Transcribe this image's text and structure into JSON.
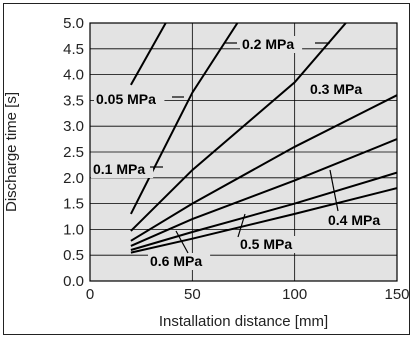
{
  "chart_data": {
    "type": "line",
    "xlabel": "Installation distance [mm]",
    "ylabel": "Discharge time [s]",
    "xlim": [
      0,
      150
    ],
    "ylim": [
      0,
      5
    ],
    "x_ticks": [
      "0",
      "50",
      "100",
      "150"
    ],
    "y_ticks": [
      "0.0",
      "0.5",
      "1.0",
      "1.5",
      "2.0",
      "2.5",
      "3.0",
      "3.5",
      "4.0",
      "4.5",
      "5.0"
    ],
    "grid": true,
    "series": [
      {
        "name": "0.05 MPa",
        "points": [
          [
            20,
            3.8
          ],
          [
            37,
            5.0
          ]
        ]
      },
      {
        "name": "0.1 MPa",
        "points": [
          [
            20,
            1.3
          ],
          [
            50,
            3.65
          ],
          [
            72,
            5.0
          ]
        ]
      },
      {
        "name": "0.2 MPa",
        "points": [
          [
            20,
            0.97
          ],
          [
            50,
            2.15
          ],
          [
            100,
            3.85
          ],
          [
            125,
            5.0
          ]
        ]
      },
      {
        "name": "0.3 MPa",
        "points": [
          [
            20,
            0.78
          ],
          [
            50,
            1.5
          ],
          [
            100,
            2.6
          ],
          [
            150,
            3.6
          ]
        ]
      },
      {
        "name": "0.4 MPa",
        "points": [
          [
            20,
            0.68
          ],
          [
            50,
            1.2
          ],
          [
            100,
            1.95
          ],
          [
            150,
            2.75
          ]
        ]
      },
      {
        "name": "0.5 MPa",
        "points": [
          [
            20,
            0.6
          ],
          [
            50,
            0.95
          ],
          [
            100,
            1.5
          ],
          [
            150,
            2.1
          ]
        ]
      },
      {
        "name": "0.6 MPa",
        "points": [
          [
            20,
            0.55
          ],
          [
            50,
            0.82
          ],
          [
            100,
            1.3
          ],
          [
            150,
            1.8
          ]
        ]
      }
    ]
  }
}
